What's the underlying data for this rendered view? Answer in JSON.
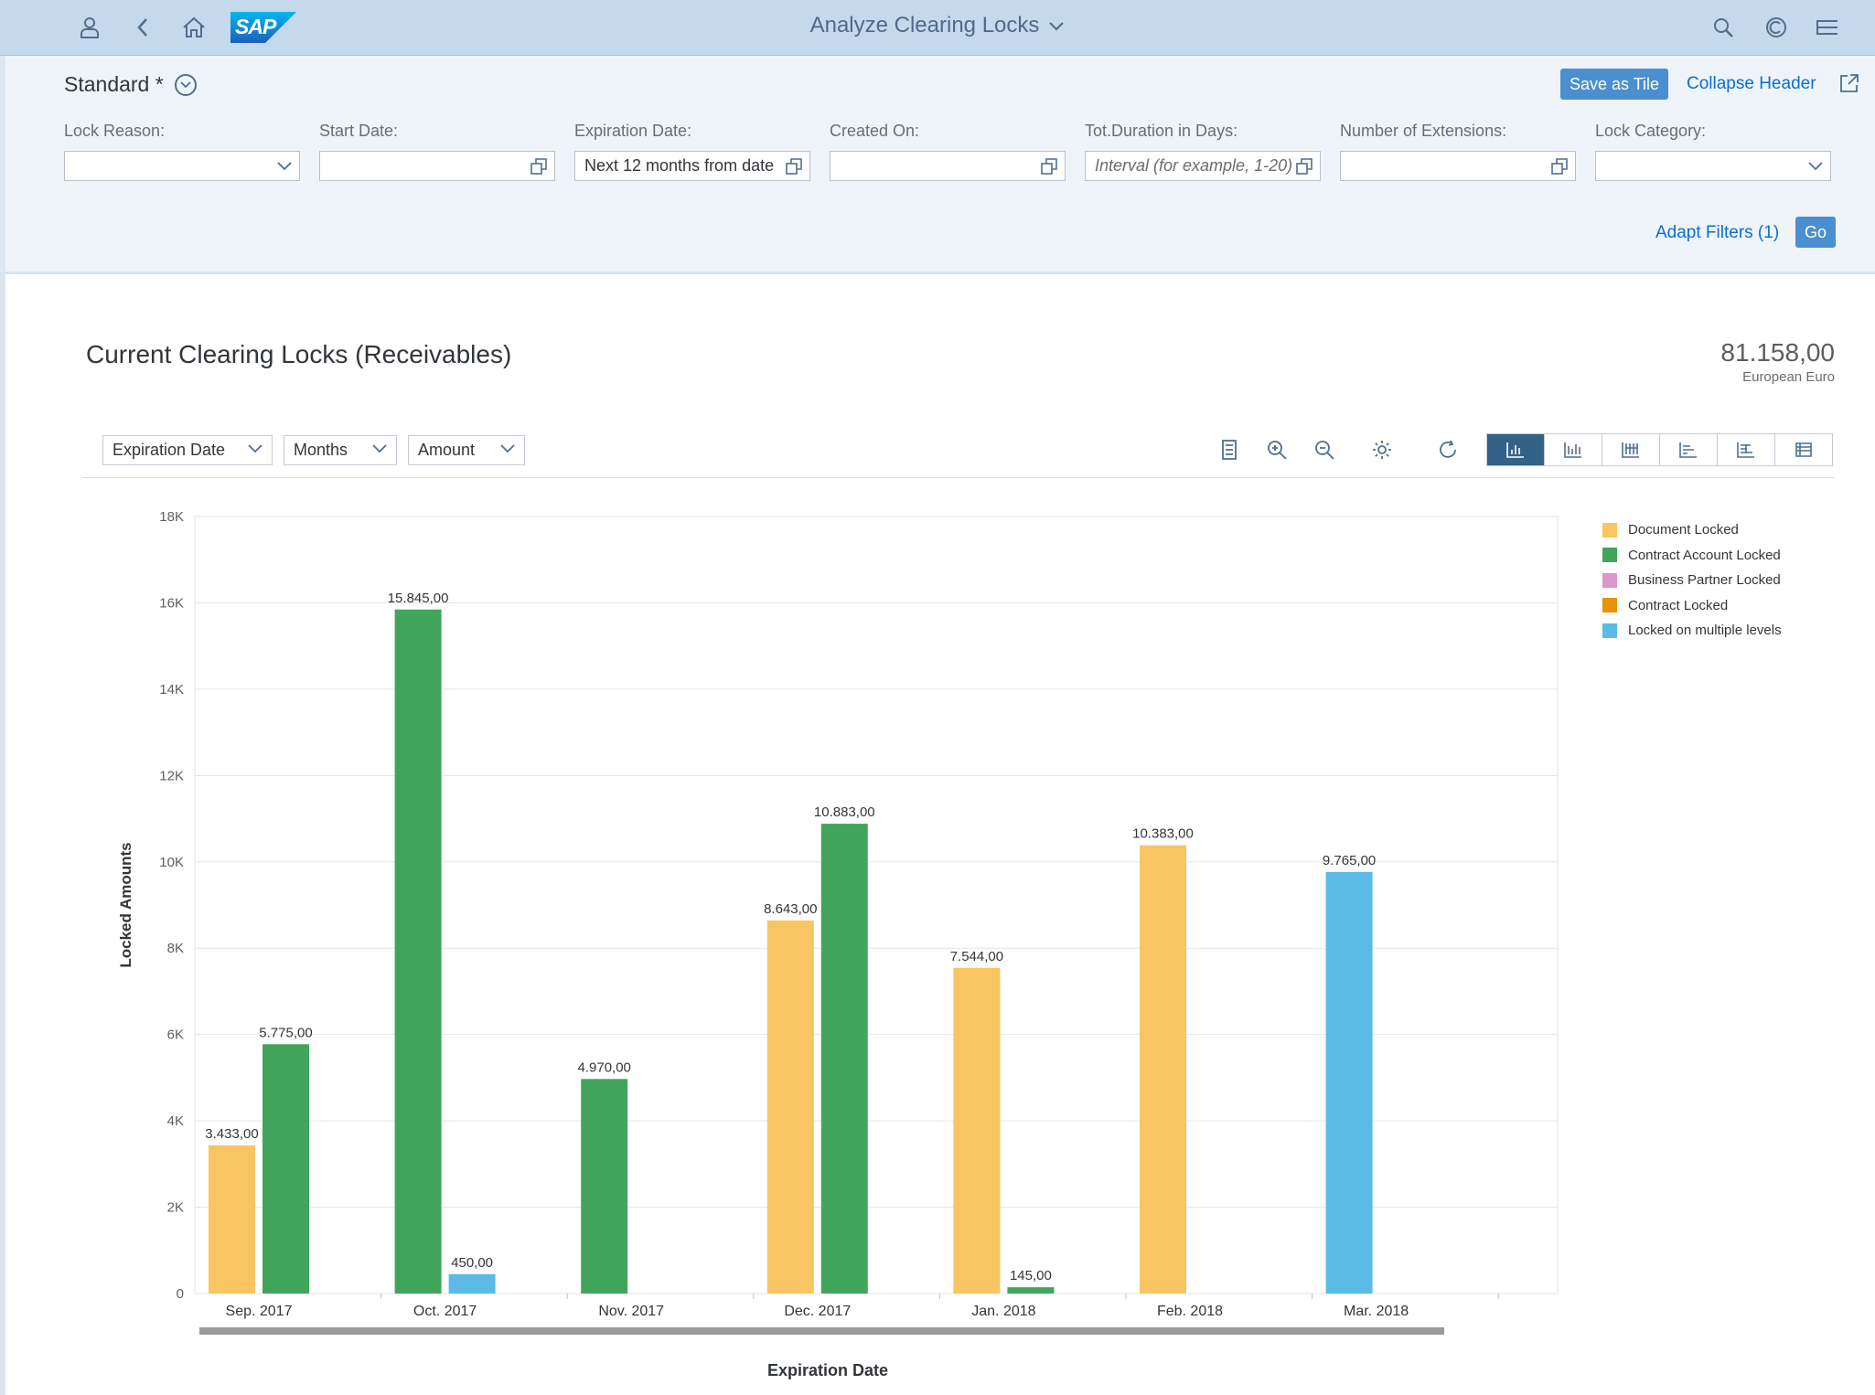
{
  "shell": {
    "logo_text": "SAP",
    "title": "Analyze Clearing Locks",
    "icons": [
      "user-icon",
      "back-icon",
      "home-icon",
      "search-icon",
      "copilot-icon",
      "menu-icon"
    ]
  },
  "header": {
    "variant_name": "Standard *",
    "save_as_tile": "Save as Tile",
    "collapse_header": "Collapse Header",
    "adapt_filters": "Adapt Filters (1)",
    "go": "Go",
    "filters": [
      {
        "label": "Lock Reason:",
        "value": "",
        "placeholder": ""
      },
      {
        "label": "Start Date:",
        "value": "",
        "placeholder": ""
      },
      {
        "label": "Expiration Date:",
        "value": "Next 12 months from date",
        "placeholder": ""
      },
      {
        "label": "Created On:",
        "value": "",
        "placeholder": ""
      },
      {
        "label": "Tot.Duration in Days:",
        "value": "",
        "placeholder": "Interval (for example, 1-20)"
      },
      {
        "label": "Number of Extensions:",
        "value": "",
        "placeholder": ""
      },
      {
        "label": "Lock Category:",
        "value": "",
        "placeholder": ""
      }
    ]
  },
  "card": {
    "title": "Current Clearing Locks (Receivables)",
    "kpi_value": "81.158,00",
    "kpi_unit": "European Euro"
  },
  "selects": {
    "dimension": "Expiration Date",
    "period": "Months",
    "measure": "Amount"
  },
  "colors": {
    "document_locked": "#f9c462",
    "contract_account_locked": "#41a55b",
    "business_partner_locked": "#d998cb",
    "contract_locked": "#e59500",
    "multiple_levels": "#5cbae6",
    "shell_bg": "#c5d9ed",
    "accent": "#0a6ed1"
  },
  "chart_data": {
    "type": "bar",
    "xlabel": "Expiration Date",
    "ylabel": "Locked Amounts",
    "ylim": [
      0,
      18000
    ],
    "yticks": [
      "0",
      "2K",
      "4K",
      "6K",
      "8K",
      "10K",
      "12K",
      "14K",
      "16K",
      "18K"
    ],
    "categories": [
      "Sep. 2017",
      "Oct. 2017",
      "Nov. 2017",
      "Dec. 2017",
      "Jan. 2018",
      "Feb. 2018",
      "Mar. 2018"
    ],
    "grid": true,
    "legend_position": "top-right",
    "series": [
      {
        "name": "Document Locked",
        "color": "#f9c462",
        "values": [
          3433,
          null,
          null,
          8643,
          7544,
          10383,
          null
        ],
        "labels": [
          "3.433,00",
          "",
          "",
          "8.643,00",
          "7.544,00",
          "10.383,00",
          ""
        ]
      },
      {
        "name": "Contract Account Locked",
        "color": "#41a55b",
        "values": [
          5775,
          15845,
          4970,
          10883,
          145,
          null,
          null
        ],
        "labels": [
          "5.775,00",
          "15.845,00",
          "4.970,00",
          "10.883,00",
          "145,00",
          "",
          ""
        ]
      },
      {
        "name": "Business Partner Locked",
        "color": "#d998cb",
        "values": [
          null,
          null,
          null,
          null,
          null,
          null,
          null
        ],
        "labels": [
          "",
          "",
          "",
          "",
          "",
          "",
          ""
        ]
      },
      {
        "name": "Contract Locked",
        "color": "#e59500",
        "values": [
          null,
          null,
          null,
          null,
          null,
          null,
          null
        ],
        "labels": [
          "",
          "",
          "",
          "",
          "",
          "",
          ""
        ]
      },
      {
        "name": "Locked on multiple levels",
        "color": "#5cbae6",
        "values": [
          null,
          450,
          null,
          null,
          null,
          null,
          9765
        ],
        "labels": [
          "",
          "450,00",
          "",
          "",
          "",
          "",
          "9.765,00"
        ]
      }
    ]
  }
}
